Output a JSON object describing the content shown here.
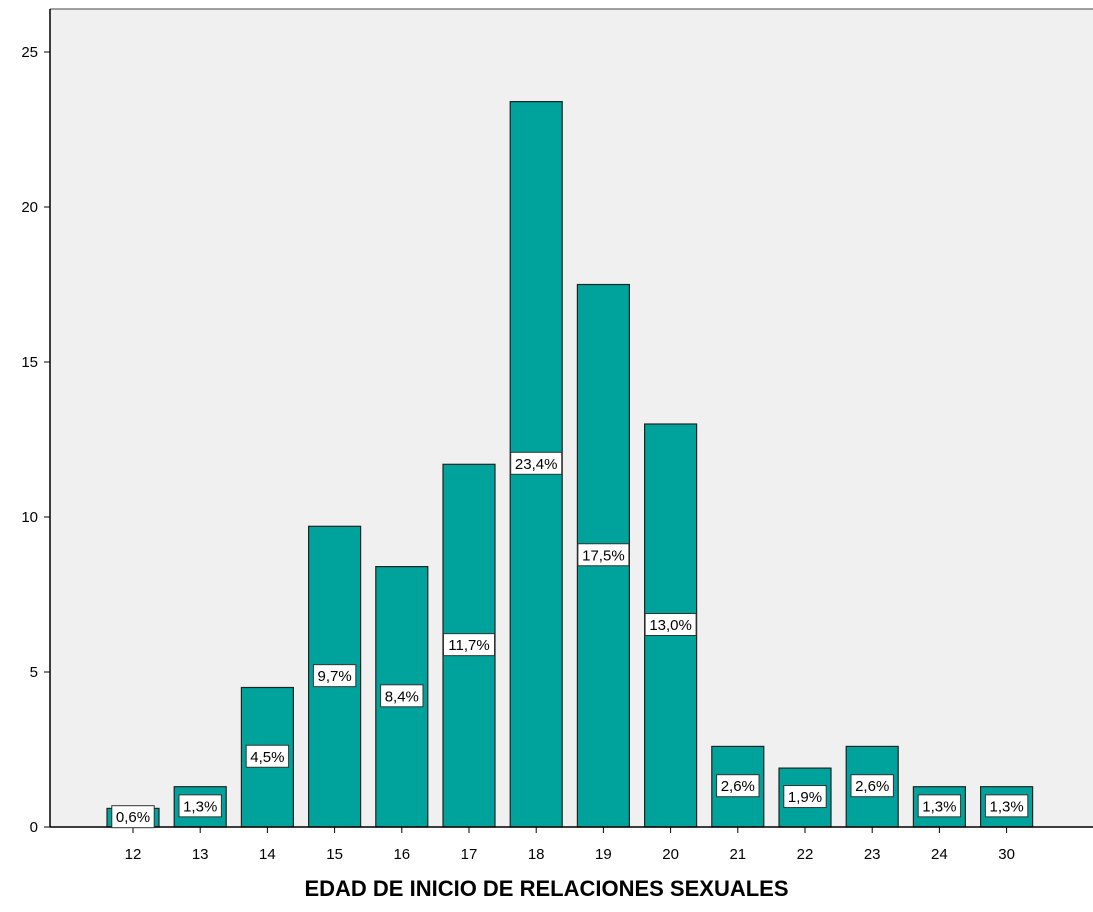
{
  "chart_data": {
    "type": "bar",
    "title": "",
    "xlabel": "EDAD DE INICIO DE RELACIONES SEXUALES",
    "ylabel": "",
    "categories": [
      "12",
      "13",
      "14",
      "15",
      "16",
      "17",
      "18",
      "19",
      "20",
      "21",
      "22",
      "23",
      "24",
      "30"
    ],
    "values": [
      0.6,
      1.3,
      4.5,
      9.7,
      8.4,
      11.7,
      23.4,
      17.5,
      13.0,
      2.6,
      1.9,
      2.6,
      1.3,
      1.3
    ],
    "data_labels": [
      "0,6%",
      "1,3%",
      "4,5%",
      "9,7%",
      "8,4%",
      "11,7%",
      "23,4%",
      "17,5%",
      "13,0%",
      "2,6%",
      "1,9%",
      "2,6%",
      "1,3%",
      "1,3%"
    ],
    "ylim": [
      0,
      26
    ],
    "yticks": [
      0,
      5,
      10,
      15,
      20,
      25
    ],
    "grid": false,
    "bar_color": "#00a39b",
    "plot_background": "#f0f0f0"
  }
}
